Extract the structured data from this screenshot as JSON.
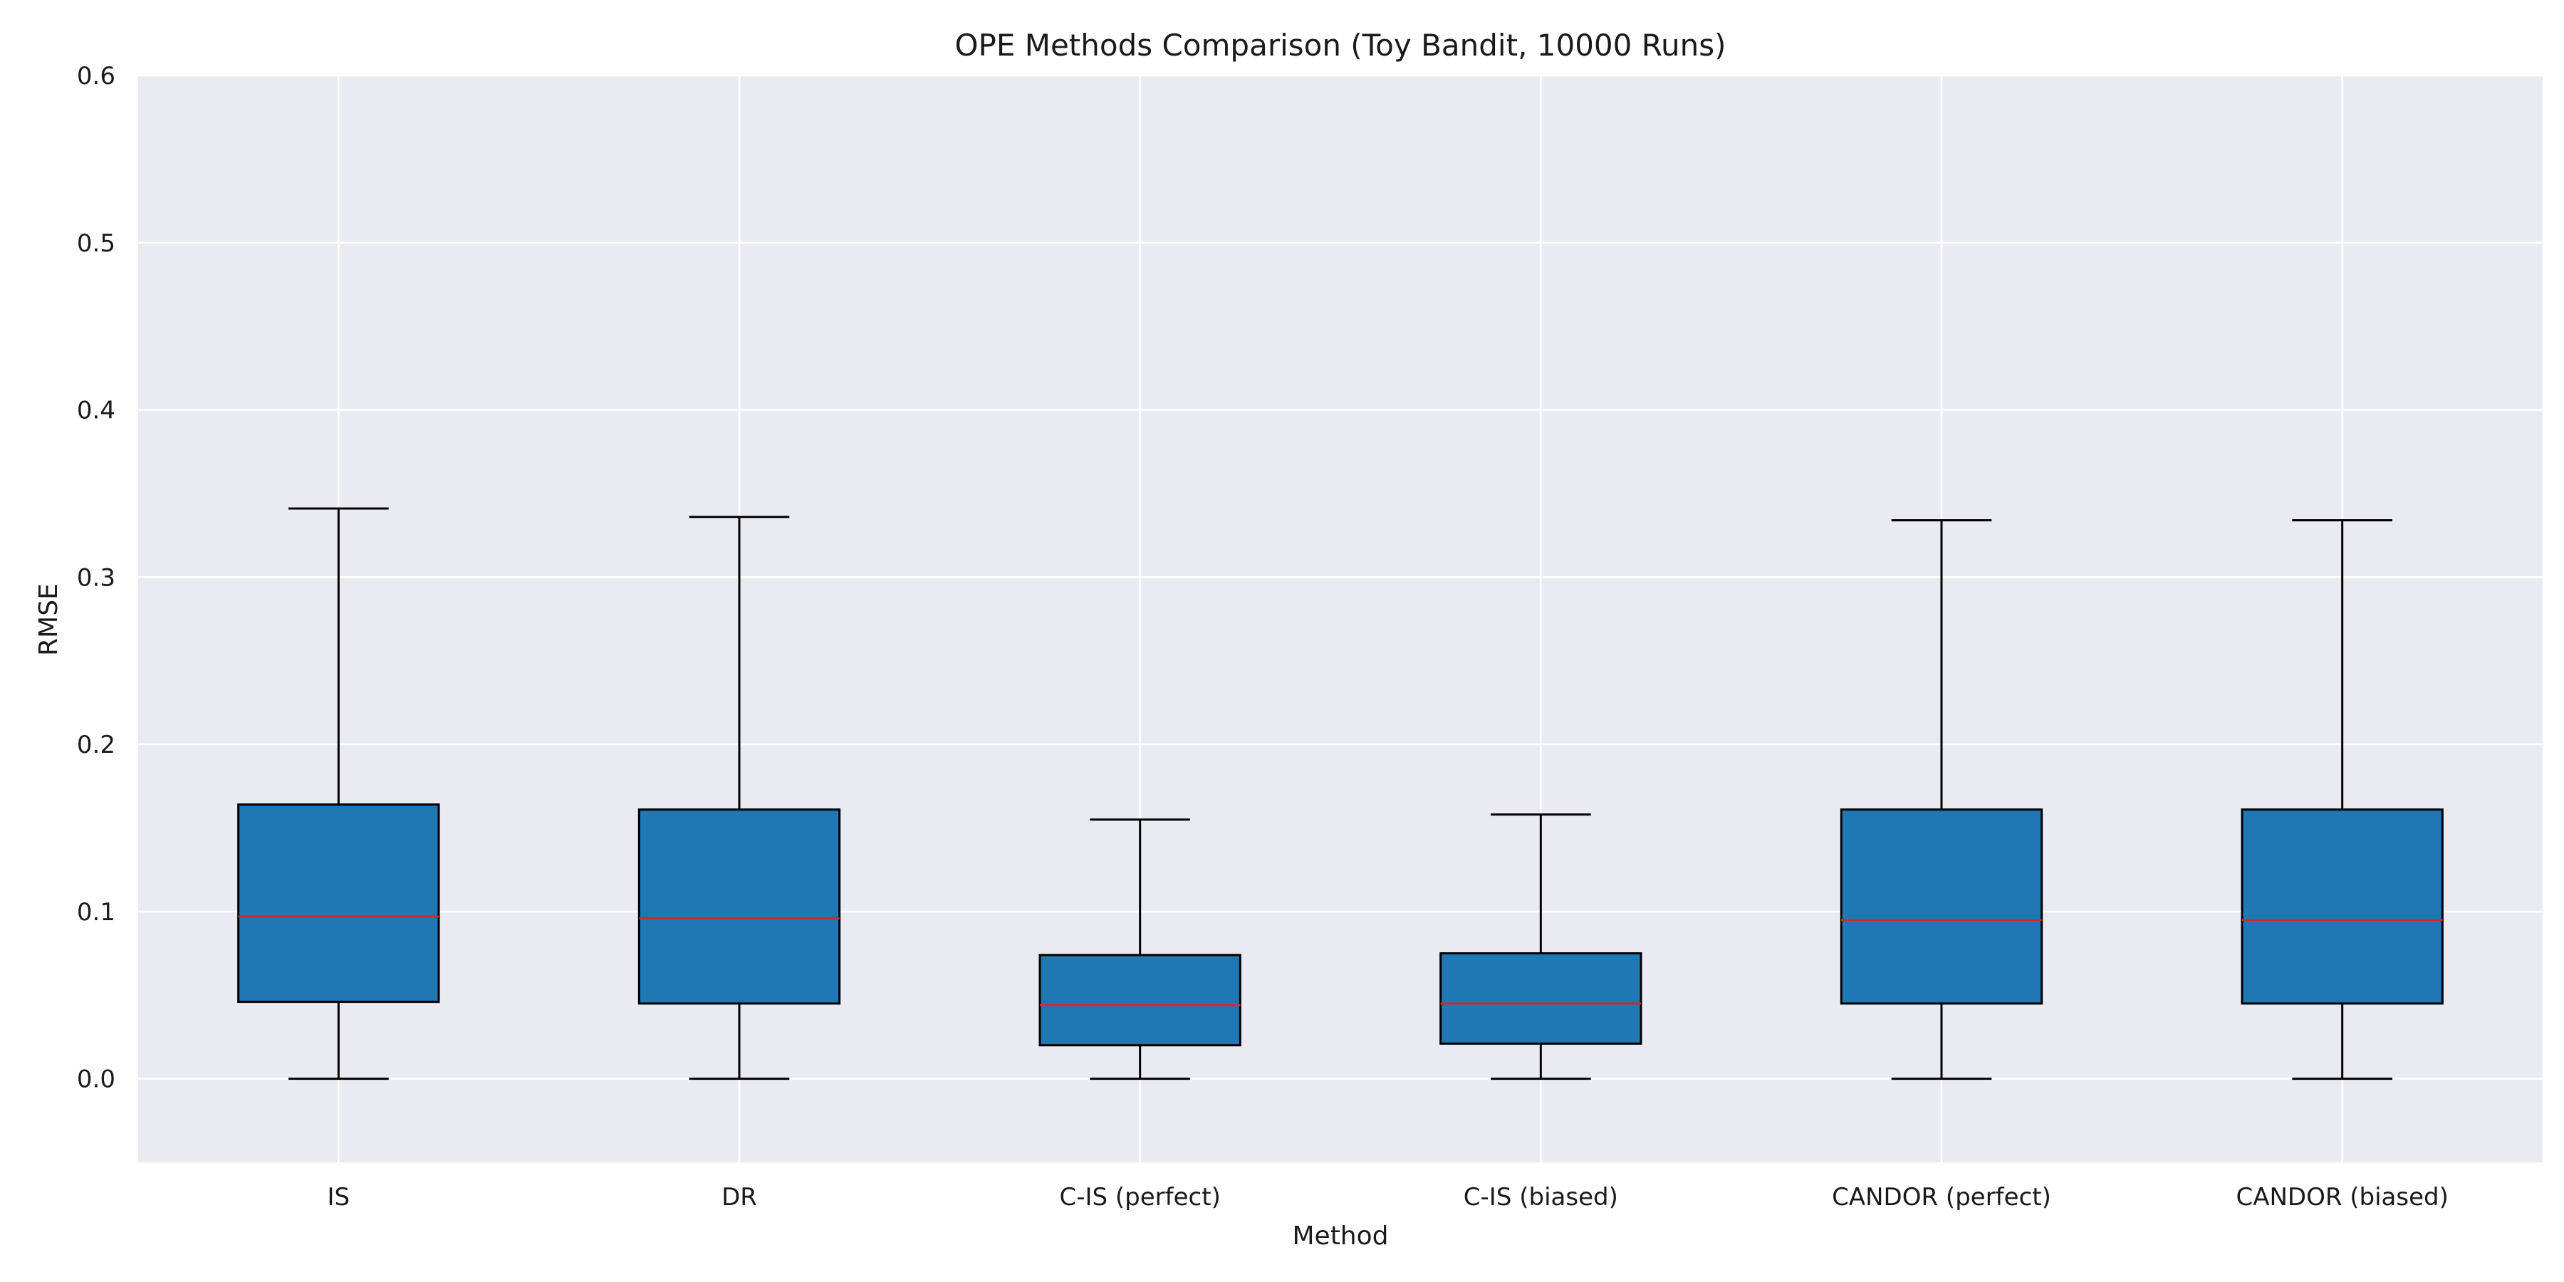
{
  "chart_data": {
    "type": "box",
    "title": "OPE Methods Comparison (Toy Bandit, 10000 Runs)",
    "xlabel": "Method",
    "ylabel": "RMSE",
    "ylim": [
      -0.05,
      0.6
    ],
    "yticks": [
      "0.0",
      "0.1",
      "0.2",
      "0.3",
      "0.4",
      "0.5",
      "0.6"
    ],
    "grid": true,
    "categories": [
      "IS",
      "DR",
      "C-IS (perfect)",
      "C-IS (biased)",
      "CANDOR (perfect)",
      "CANDOR (biased)"
    ],
    "boxes": [
      {
        "category": "IS",
        "whisker_low": 0.0,
        "q1": 0.046,
        "median": 0.097,
        "q3": 0.164,
        "whisker_high": 0.341
      },
      {
        "category": "DR",
        "whisker_low": 0.0,
        "q1": 0.045,
        "median": 0.096,
        "q3": 0.161,
        "whisker_high": 0.336
      },
      {
        "category": "C-IS (perfect)",
        "whisker_low": 0.0,
        "q1": 0.02,
        "median": 0.044,
        "q3": 0.074,
        "whisker_high": 0.155
      },
      {
        "category": "C-IS (biased)",
        "whisker_low": 0.0,
        "q1": 0.021,
        "median": 0.045,
        "q3": 0.075,
        "whisker_high": 0.158
      },
      {
        "category": "CANDOR (perfect)",
        "whisker_low": 0.0,
        "q1": 0.045,
        "median": 0.095,
        "q3": 0.161,
        "whisker_high": 0.334
      },
      {
        "category": "CANDOR (biased)",
        "whisker_low": 0.0,
        "q1": 0.045,
        "median": 0.095,
        "q3": 0.161,
        "whisker_high": 0.334
      }
    ],
    "colors": {
      "box_fill": "#1f77b4",
      "box_edge": "#000000",
      "median": "#d62728",
      "plot_bg": "#eaeaf2",
      "grid": "#ffffff"
    }
  }
}
